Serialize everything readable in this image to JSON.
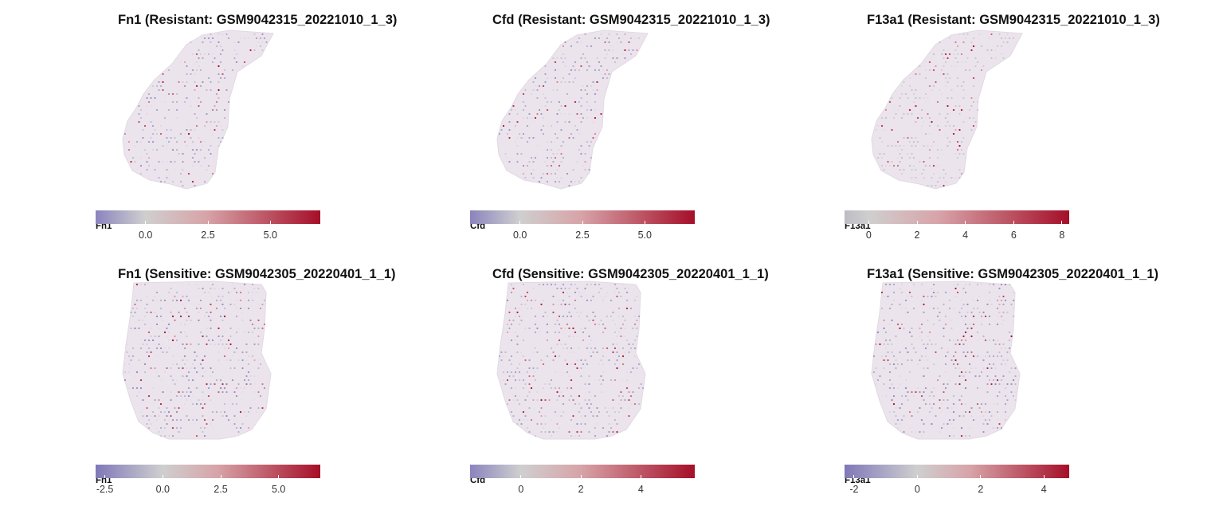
{
  "chart_data": [
    {
      "type": "scatter",
      "title": "Fn1 (Resistant: GSM9042315_20221010_1_3)",
      "legend_title": "Fn1",
      "color_range": [
        -2.0,
        7.0
      ],
      "tick_values": [
        0.0,
        2.5,
        5.0
      ],
      "tick_labels": [
        "0.0",
        "2.5",
        "5.0"
      ],
      "colors": {
        "low": "#8a84bd",
        "mid": "#cfcfcf",
        "high": "#a50f28"
      },
      "grid": false,
      "legend_placement": "bottom"
    },
    {
      "type": "scatter",
      "title": "Cfd (Resistant: GSM9042315_20221010_1_3)",
      "legend_title": "Cfd",
      "color_range": [
        -2.0,
        7.0
      ],
      "tick_values": [
        0.0,
        2.5,
        5.0
      ],
      "tick_labels": [
        "0.0",
        "2.5",
        "5.0"
      ],
      "colors": {
        "low": "#8a84bd",
        "mid": "#cfcfcf",
        "high": "#a50f28"
      },
      "grid": false,
      "legend_placement": "bottom"
    },
    {
      "type": "scatter",
      "title": "F13a1 (Resistant: GSM9042315_20221010_1_3)",
      "legend_title": "F13a1",
      "color_range": [
        -1.0,
        8.3
      ],
      "tick_values": [
        0,
        2,
        4,
        6,
        8
      ],
      "tick_labels": [
        "0",
        "2",
        "4",
        "6",
        "8"
      ],
      "colors": {
        "low": "#bcbcc4",
        "mid": "#cfcfcf",
        "high": "#a50f28"
      },
      "grid": false,
      "legend_placement": "bottom"
    },
    {
      "type": "scatter",
      "title": "Fn1 (Sensitive: GSM9042305_20220401_1_1)",
      "legend_title": "Fn1",
      "color_range": [
        -2.9,
        6.8
      ],
      "tick_values": [
        -2.5,
        0.0,
        2.5,
        5.0
      ],
      "tick_labels": [
        "-2.5",
        "0.0",
        "2.5",
        "5.0"
      ],
      "colors": {
        "low": "#7f78b8",
        "mid": "#cfcfcf",
        "high": "#a50f28"
      },
      "grid": false,
      "legend_placement": "bottom"
    },
    {
      "type": "scatter",
      "title": "Cfd (Sensitive: GSM9042305_20220401_1_1)",
      "legend_title": "Cfd",
      "color_range": [
        -1.7,
        5.8
      ],
      "tick_values": [
        0,
        2,
        4
      ],
      "tick_labels": [
        "0",
        "2",
        "4"
      ],
      "colors": {
        "low": "#8a84bd",
        "mid": "#cfcfcf",
        "high": "#a50f28"
      },
      "grid": false,
      "legend_placement": "bottom"
    },
    {
      "type": "scatter",
      "title": "F13a1 (Sensitive: GSM9042305_20220401_1_1)",
      "legend_title": "F13a1",
      "color_range": [
        -2.3,
        4.8
      ],
      "tick_values": [
        -2,
        0,
        2,
        4
      ],
      "tick_labels": [
        "-2",
        "0",
        "2",
        "4"
      ],
      "colors": {
        "low": "#7f78b8",
        "mid": "#cfcfcf",
        "high": "#a50f28"
      },
      "grid": false,
      "legend_placement": "bottom"
    }
  ]
}
